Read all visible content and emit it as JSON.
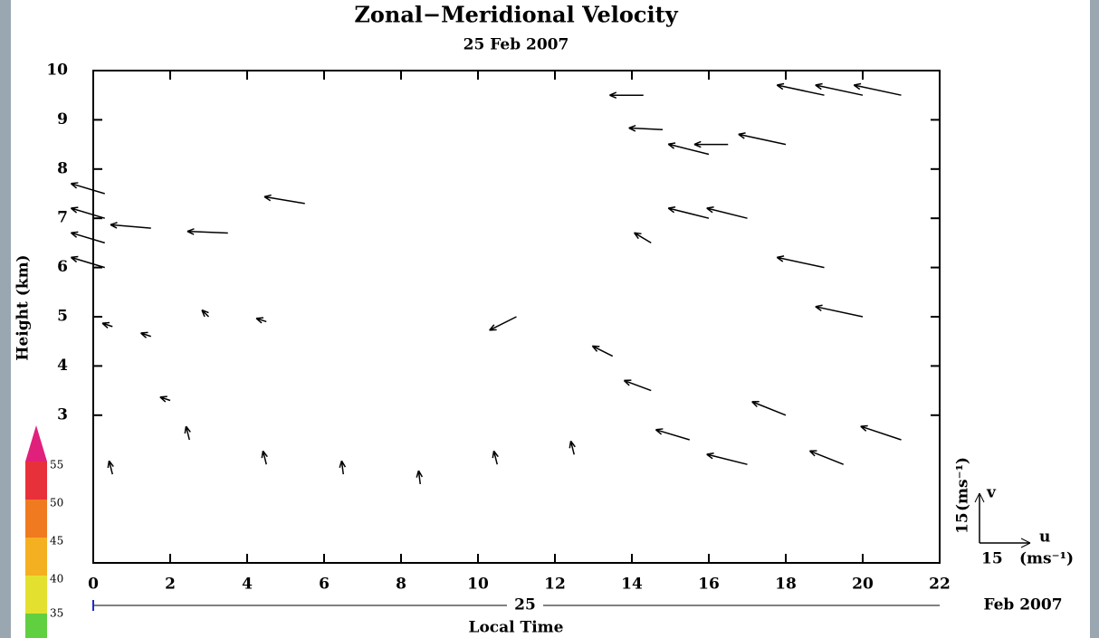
{
  "chart_data": {
    "type": "quiver",
    "title": "Zonal−Meridional Velocity",
    "subtitle": "25 Feb 2007",
    "x_label": "Local Time",
    "y_label": "Height (km)",
    "date_day": "25",
    "date_month_year": "Feb 2007",
    "xlim": [
      0,
      22
    ],
    "xticks": [
      0,
      2,
      4,
      6,
      8,
      10,
      12,
      14,
      16,
      18,
      20,
      22
    ],
    "ylim": [
      0,
      10
    ],
    "yticks": [
      3,
      4,
      5,
      6,
      7,
      8,
      9,
      10
    ],
    "color": "#000000",
    "reference": {
      "u_label": "u",
      "v_label": "v",
      "u_speed": "15",
      "v_speed": "15",
      "u_unit": "(ms⁻¹)",
      "v_unit": "(ms⁻¹)"
    },
    "vectors": {
      "x": [
        0.3,
        0.3,
        0.3,
        0.3,
        1.5,
        3.5,
        5.5,
        11,
        14.3,
        14.8,
        16,
        16.5,
        16,
        17,
        18,
        19,
        20,
        21,
        19,
        20,
        18,
        19.5,
        21,
        17,
        15.5,
        14.5,
        13.5,
        14.5,
        0.5,
        2.5,
        4.5,
        6.5,
        8.5,
        10.5,
        12.5,
        0.5,
        1.5,
        3,
        2,
        4.5
      ],
      "y": [
        7.5,
        7.0,
        6.5,
        6.0,
        6.8,
        6.7,
        7.3,
        5.0,
        9.5,
        8.8,
        8.3,
        8.5,
        7.0,
        7.0,
        8.5,
        9.5,
        9.5,
        9.5,
        6.0,
        5.0,
        3.0,
        2.0,
        2.5,
        2.0,
        2.5,
        3.5,
        4.2,
        6.5,
        1.8,
        2.5,
        2.0,
        1.8,
        1.6,
        2.0,
        2.2,
        4.8,
        4.6,
        5.0,
        3.3,
        4.9
      ],
      "u": [
        -10,
        -10,
        -10,
        -10,
        -12,
        -12,
        -12,
        -8,
        -10,
        -10,
        -12,
        -10,
        -12,
        -12,
        -14,
        -14,
        -14,
        -14,
        -14,
        -14,
        -10,
        -10,
        -12,
        -12,
        -10,
        -8,
        -6,
        -5,
        -1,
        -1,
        -1,
        -0.5,
        -0.5,
        -1,
        -1,
        -3,
        -3,
        -2,
        -3,
        -3
      ],
      "v": [
        3,
        3,
        3,
        3,
        1,
        0.5,
        2,
        -4,
        0,
        0.5,
        3,
        0,
        3,
        3,
        3,
        3,
        3,
        3,
        3,
        3,
        4,
        4,
        4,
        3,
        3,
        3,
        3,
        3,
        4,
        4,
        4,
        4,
        4,
        4,
        4,
        1,
        1,
        2,
        1,
        1
      ]
    }
  },
  "background_colorbar": {
    "labels": [
      "55",
      "50",
      "45",
      "40",
      "35"
    ]
  }
}
